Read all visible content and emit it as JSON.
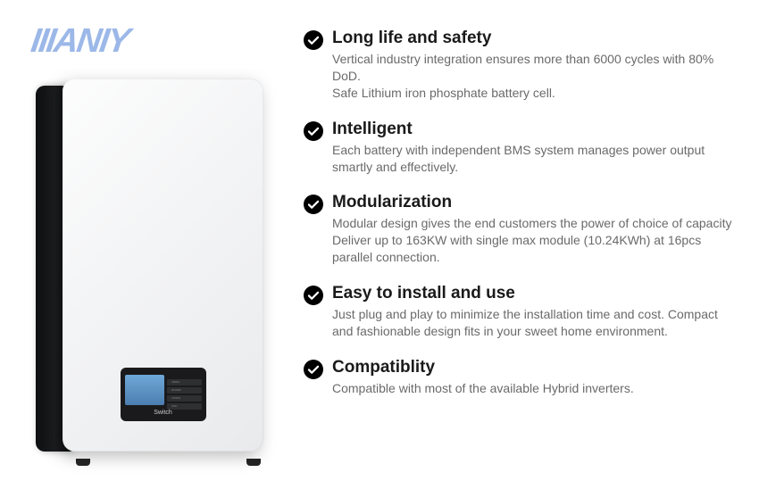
{
  "brand": {
    "logo_text": "IIIANIY",
    "logo_color": "#9cb8e8"
  },
  "device": {
    "switch_label": "Switch",
    "body_color_light": "#f4f5f6",
    "body_color_dark": "#1a1a1c",
    "screen_color": "#5a8cc0",
    "button_labels": [
      "MENU",
      "ENTER",
      "DOWN",
      "ESC"
    ]
  },
  "features": [
    {
      "title": "Long life and safety",
      "desc": "Vertical industry integration ensures more than 6000 cycles with 80% DoD.\nSafe Lithium iron phosphate battery cell."
    },
    {
      "title": "Intelligent",
      "desc": "Each battery with independent BMS system manages power output smartly and effectively."
    },
    {
      "title": "Modularization",
      "desc": "Modular design gives the end customers the power of choice of capacity Deliver up to 163KW with single max module (10.24KWh) at 16pcs parallel connection."
    },
    {
      "title": "Easy to install and use",
      "desc": "Just plug and play to minimize the installation time and cost. Compact and fashionable design fits in your sweet home environment."
    },
    {
      "title": "Compatiblity",
      "desc": "Compatible with most of the available Hybrid inverters."
    }
  ],
  "styling": {
    "background": "#ffffff",
    "title_color": "#1a1a1a",
    "desc_color": "#6a6a6a",
    "check_bg": "#000000",
    "check_tick": "#ffffff",
    "title_fontsize": 19,
    "desc_fontsize": 14
  }
}
